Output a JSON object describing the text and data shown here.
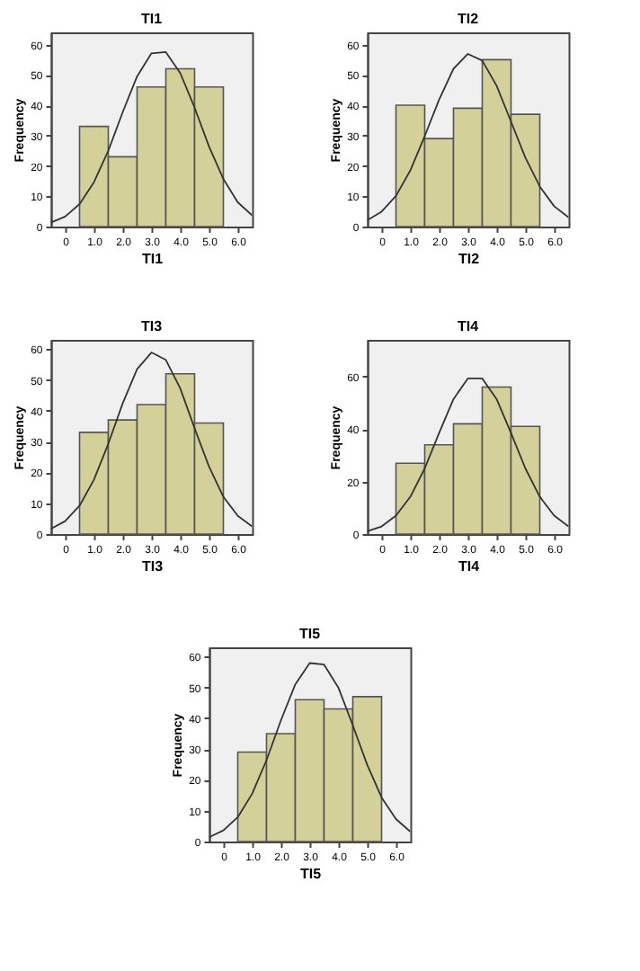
{
  "chart_data": [
    {
      "type": "histogram",
      "title": "TI1",
      "xlabel": "TI1",
      "ylabel": "Frequency",
      "bins": [
        0.5,
        1.5,
        2.5,
        3.5,
        4.5,
        5.5
      ],
      "values": [
        33,
        23,
        46,
        52,
        46
      ],
      "color": "#d4d09a",
      "xlim": [
        -0.5,
        6.5
      ],
      "xticks": [
        0,
        {
          "value": 1,
          "label": "1.0"
        },
        {
          "value": 2,
          "label": "2.0"
        },
        {
          "value": 3,
          "label": "3.0"
        },
        {
          "value": 4,
          "label": "4.0"
        },
        {
          "value": 5,
          "label": "5.0"
        },
        {
          "value": 6,
          "label": "6.0"
        }
      ],
      "ylim": [
        0,
        64
      ],
      "yticks": [
        0,
        10,
        20,
        30,
        40,
        50,
        60
      ],
      "grid": false,
      "series": [
        {
          "type": "line",
          "color": "#333333",
          "marker": "none",
          "x": [
            -0.5,
            0,
            0.5,
            1,
            1.5,
            2,
            2.5,
            3,
            3.5,
            4,
            4.5,
            5,
            5.5,
            6,
            6.5
          ],
          "values": [
            1.3,
            3.3,
            7.4,
            14.6,
            25,
            37.7,
            49.5,
            57.1,
            57.5,
            50.6,
            39.2,
            26.4,
            15.7,
            8,
            3.7
          ]
        }
      ]
    },
    {
      "type": "histogram",
      "title": "TI2",
      "xlabel": "TI2",
      "ylabel": "Frequency",
      "bins": [
        0.5,
        1.5,
        2.5,
        3.5,
        4.5,
        5.5
      ],
      "values": [
        40,
        29,
        39,
        55,
        37
      ],
      "color": "#d4d09a",
      "xlim": [
        -0.5,
        6.5
      ],
      "xticks": [
        0,
        {
          "value": 1,
          "label": "1.0"
        },
        {
          "value": 2,
          "label": "2.0"
        },
        {
          "value": 3,
          "label": "3.0"
        },
        {
          "value": 4,
          "label": "4.0"
        },
        {
          "value": 5,
          "label": "5.0"
        },
        {
          "value": 6,
          "label": "6.0"
        }
      ],
      "ylim": [
        0,
        64
      ],
      "yticks": [
        0,
        10,
        20,
        30,
        40,
        50,
        60
      ],
      "grid": false,
      "series": [
        {
          "type": "line",
          "color": "#333333",
          "marker": "none",
          "x": [
            -0.5,
            0,
            0.5,
            1,
            1.5,
            2,
            2.5,
            3,
            3.5,
            4,
            4.5,
            5,
            5.5,
            6,
            6.5
          ],
          "values": [
            2.1,
            4.9,
            10.1,
            18.5,
            29.8,
            41.8,
            52,
            56.9,
            54.7,
            46.4,
            34.6,
            22.7,
            13.2,
            6.7,
            3
          ]
        }
      ]
    },
    {
      "type": "histogram",
      "title": "TI3",
      "xlabel": "TI3",
      "ylabel": "Frequency",
      "bins": [
        0.5,
        1.5,
        2.5,
        3.5,
        4.5,
        5.5
      ],
      "values": [
        33,
        37,
        42,
        52,
        36
      ],
      "color": "#d4d09a",
      "xlim": [
        -0.5,
        6.5
      ],
      "xticks": [
        0,
        {
          "value": 1,
          "label": "1.0"
        },
        {
          "value": 2,
          "label": "2.0"
        },
        {
          "value": 3,
          "label": "3.0"
        },
        {
          "value": 4,
          "label": "4.0"
        },
        {
          "value": 5,
          "label": "5.0"
        },
        {
          "value": 6,
          "label": "6.0"
        }
      ],
      "ylim": [
        0,
        63
      ],
      "yticks": [
        0,
        10,
        20,
        30,
        40,
        50,
        60
      ],
      "grid": false,
      "series": [
        {
          "type": "line",
          "color": "#333333",
          "marker": "none",
          "x": [
            -0.5,
            0,
            0.5,
            1,
            1.5,
            2,
            2.5,
            3,
            3.5,
            4,
            4.5,
            5,
            5.5,
            6,
            6.5
          ],
          "values": [
            1.7,
            4.2,
            9.2,
            17.6,
            29.3,
            42.4,
            53.5,
            58.9,
            56.5,
            47.3,
            34.3,
            21.9,
            12.1,
            5.9,
            2.5
          ]
        }
      ]
    },
    {
      "type": "histogram",
      "title": "TI4",
      "xlabel": "TI4",
      "ylabel": "Frequency",
      "bins": [
        0.5,
        1.5,
        2.5,
        3.5,
        4.5,
        5.5
      ],
      "values": [
        27,
        34,
        42,
        56,
        41
      ],
      "color": "#d4d09a",
      "xlim": [
        -0.5,
        6.5
      ],
      "xticks": [
        0,
        {
          "value": 1,
          "label": "1.0"
        },
        {
          "value": 2,
          "label": "2.0"
        },
        {
          "value": 3,
          "label": "3.0"
        },
        {
          "value": 4,
          "label": "4.0"
        },
        {
          "value": 5,
          "label": "5.0"
        },
        {
          "value": 6,
          "label": "6.0"
        }
      ],
      "ylim": [
        0,
        74
      ],
      "yticks": [
        0,
        20,
        40,
        60
      ],
      "grid": false,
      "series": [
        {
          "type": "line",
          "color": "#333333",
          "marker": "none",
          "x": [
            -0.5,
            0,
            0.5,
            1,
            1.5,
            2,
            2.5,
            3,
            3.5,
            4,
            4.5,
            5,
            5.5,
            6,
            6.5
          ],
          "values": [
            1.1,
            2.9,
            7,
            14.2,
            25,
            38.5,
            51.4,
            59.3,
            59.3,
            51.4,
            38.5,
            25,
            14.2,
            7,
            2.9
          ]
        }
      ]
    },
    {
      "type": "histogram",
      "title": "TI5",
      "xlabel": "TI5",
      "ylabel": "Frequency",
      "bins": [
        0.5,
        1.5,
        2.5,
        3.5,
        4.5,
        5.5
      ],
      "values": [
        29,
        35,
        46,
        43,
        47
      ],
      "color": "#d4d09a",
      "xlim": [
        -0.5,
        6.5
      ],
      "xticks": [
        0,
        {
          "value": 1,
          "label": "1.0"
        },
        {
          "value": 2,
          "label": "2.0"
        },
        {
          "value": 3,
          "label": "3.0"
        },
        {
          "value": 4,
          "label": "4.0"
        },
        {
          "value": 5,
          "label": "5.0"
        },
        {
          "value": 6,
          "label": "6.0"
        }
      ],
      "ylim": [
        0,
        63
      ],
      "yticks": [
        0,
        10,
        20,
        30,
        40,
        50,
        60
      ],
      "grid": false,
      "series": [
        {
          "type": "line",
          "color": "#333333",
          "marker": "none",
          "x": [
            -0.5,
            0,
            0.5,
            1,
            1.5,
            2,
            2.5,
            3,
            3.5,
            4,
            4.5,
            5,
            5.5,
            6,
            6.5
          ],
          "values": [
            1.4,
            3.6,
            7.9,
            15.5,
            26.4,
            39.3,
            51,
            57.9,
            57.4,
            49.9,
            37.7,
            24.9,
            14.3,
            7.3,
            3.2
          ]
        }
      ]
    }
  ]
}
